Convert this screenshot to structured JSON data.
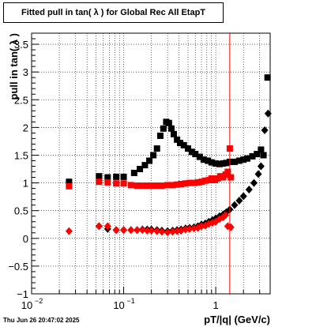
{
  "chart_data": {
    "type": "scatter",
    "title": "Fitted pull in tan( λ ) for Global Rec All EtapT",
    "xlabel": "pT/|q| (GeV/c)",
    "ylabel": "pull in tan( λ )",
    "x_scale": "log",
    "xlim": [
      0.01,
      3.9
    ],
    "ylim": [
      -1,
      3.7
    ],
    "grid": true,
    "x_ticks": [
      {
        "value": 0.01,
        "label": "10",
        "exp": "−2"
      },
      {
        "value": 0.1,
        "label": "10",
        "exp": "−1"
      },
      {
        "value": 1,
        "label": "1",
        "exp": ""
      }
    ],
    "y_ticks": [
      {
        "value": -1,
        "label": "−1"
      },
      {
        "value": -0.5,
        "label": "−0.5"
      },
      {
        "value": 0,
        "label": "0"
      },
      {
        "value": 0.5,
        "label": "0.5"
      },
      {
        "value": 1,
        "label": "1"
      },
      {
        "value": 1.5,
        "label": "1.5"
      },
      {
        "value": 2,
        "label": "2"
      },
      {
        "value": 2.5,
        "label": "2.5"
      },
      {
        "value": 3,
        "label": "3"
      },
      {
        "value": 3.5,
        "label": "3.5"
      }
    ],
    "vertical_line": {
      "x": 1.42,
      "color": "#ff0000"
    },
    "series": [
      {
        "marker": "square",
        "color": "#000000",
        "points": [
          [
            0.0255,
            1.02
          ],
          [
            0.054,
            1.12
          ],
          [
            0.067,
            1.1
          ],
          [
            0.083,
            1.11
          ],
          [
            0.1,
            1.11
          ],
          [
            0.13,
            1.18
          ],
          [
            0.15,
            1.25
          ],
          [
            0.17,
            1.32
          ],
          [
            0.19,
            1.4
          ],
          [
            0.21,
            1.5
          ],
          [
            0.23,
            1.62
          ],
          [
            0.25,
            1.85
          ],
          [
            0.27,
            1.98
          ],
          [
            0.29,
            2.1
          ],
          [
            0.31,
            2.08
          ],
          [
            0.33,
            1.98
          ],
          [
            0.35,
            1.88
          ],
          [
            0.38,
            1.78
          ],
          [
            0.41,
            1.72
          ],
          [
            0.45,
            1.68
          ],
          [
            0.5,
            1.62
          ],
          [
            0.55,
            1.56
          ],
          [
            0.6,
            1.52
          ],
          [
            0.67,
            1.47
          ],
          [
            0.74,
            1.42
          ],
          [
            0.82,
            1.4
          ],
          [
            0.9,
            1.37
          ],
          [
            1.0,
            1.35
          ],
          [
            1.1,
            1.34
          ],
          [
            1.2,
            1.35
          ],
          [
            1.3,
            1.36
          ],
          [
            1.42,
            1.38
          ],
          [
            1.6,
            1.38
          ],
          [
            1.8,
            1.4
          ],
          [
            2.0,
            1.42
          ],
          [
            2.2,
            1.44
          ],
          [
            2.5,
            1.48
          ],
          [
            2.8,
            1.52
          ],
          [
            3.1,
            1.6
          ],
          [
            3.3,
            1.5
          ],
          [
            3.65,
            2.9
          ]
        ]
      },
      {
        "marker": "square",
        "color": "#ff0000",
        "points": [
          [
            0.0255,
            0.94
          ],
          [
            0.054,
            1.02
          ],
          [
            0.067,
            1.01
          ],
          [
            0.083,
            0.99
          ],
          [
            0.1,
            0.99
          ],
          [
            0.12,
            0.96
          ],
          [
            0.14,
            0.95
          ],
          [
            0.16,
            0.95
          ],
          [
            0.18,
            0.95
          ],
          [
            0.2,
            0.95
          ],
          [
            0.23,
            0.95
          ],
          [
            0.26,
            0.95
          ],
          [
            0.3,
            0.96
          ],
          [
            0.34,
            0.96
          ],
          [
            0.38,
            0.97
          ],
          [
            0.42,
            0.98
          ],
          [
            0.47,
            0.99
          ],
          [
            0.52,
            1.0
          ],
          [
            0.58,
            1.0
          ],
          [
            0.64,
            1.01
          ],
          [
            0.7,
            1.02
          ],
          [
            0.77,
            1.04
          ],
          [
            0.84,
            1.05
          ],
          [
            0.9,
            1.08
          ],
          [
            0.98,
            1.05
          ],
          [
            1.05,
            1.08
          ],
          [
            1.12,
            1.12
          ],
          [
            1.2,
            1.1
          ],
          [
            1.28,
            1.15
          ],
          [
            1.35,
            1.2
          ],
          [
            1.42,
            1.62
          ],
          [
            1.46,
            1.1
          ]
        ]
      },
      {
        "marker": "diamond",
        "color": "#000000",
        "points": [
          [
            0.054,
            0.22
          ],
          [
            0.067,
            0.17
          ],
          [
            0.083,
            0.15
          ],
          [
            0.1,
            0.15
          ],
          [
            0.12,
            0.15
          ],
          [
            0.14,
            0.15
          ],
          [
            0.16,
            0.16
          ],
          [
            0.18,
            0.16
          ],
          [
            0.2,
            0.16
          ],
          [
            0.23,
            0.15
          ],
          [
            0.26,
            0.14
          ],
          [
            0.3,
            0.13
          ],
          [
            0.34,
            0.14
          ],
          [
            0.38,
            0.15
          ],
          [
            0.42,
            0.16
          ],
          [
            0.47,
            0.18
          ],
          [
            0.52,
            0.19
          ],
          [
            0.58,
            0.2
          ],
          [
            0.64,
            0.22
          ],
          [
            0.7,
            0.25
          ],
          [
            0.77,
            0.27
          ],
          [
            0.84,
            0.3
          ],
          [
            0.92,
            0.33
          ],
          [
            1.0,
            0.36
          ],
          [
            1.1,
            0.4
          ],
          [
            1.2,
            0.43
          ],
          [
            1.3,
            0.47
          ],
          [
            1.42,
            0.52
          ],
          [
            1.6,
            0.6
          ],
          [
            1.8,
            0.68
          ],
          [
            2.0,
            0.76
          ],
          [
            2.3,
            0.88
          ],
          [
            2.6,
            1.0
          ],
          [
            2.9,
            1.16
          ],
          [
            3.1,
            1.3
          ],
          [
            3.4,
            1.95
          ],
          [
            3.7,
            2.25
          ]
        ]
      },
      {
        "marker": "diamond",
        "color": "#ff0000",
        "points": [
          [
            0.0255,
            0.13
          ],
          [
            0.054,
            0.22
          ],
          [
            0.067,
            0.22
          ],
          [
            0.083,
            0.15
          ],
          [
            0.1,
            0.15
          ],
          [
            0.12,
            0.15
          ],
          [
            0.14,
            0.15
          ],
          [
            0.16,
            0.15
          ],
          [
            0.18,
            0.14
          ],
          [
            0.2,
            0.14
          ],
          [
            0.23,
            0.13
          ],
          [
            0.26,
            0.12
          ],
          [
            0.3,
            0.11
          ],
          [
            0.34,
            0.12
          ],
          [
            0.38,
            0.13
          ],
          [
            0.42,
            0.14
          ],
          [
            0.47,
            0.16
          ],
          [
            0.52,
            0.17
          ],
          [
            0.58,
            0.18
          ],
          [
            0.64,
            0.19
          ],
          [
            0.7,
            0.22
          ],
          [
            0.77,
            0.23
          ],
          [
            0.84,
            0.26
          ],
          [
            0.92,
            0.28
          ],
          [
            1.0,
            0.3
          ],
          [
            1.1,
            0.35
          ],
          [
            1.2,
            0.38
          ],
          [
            1.28,
            0.42
          ],
          [
            1.35,
            0.22
          ],
          [
            1.46,
            0.2
          ]
        ]
      }
    ]
  },
  "timestamp": "Thu Jun 26 20:47:02 2025"
}
